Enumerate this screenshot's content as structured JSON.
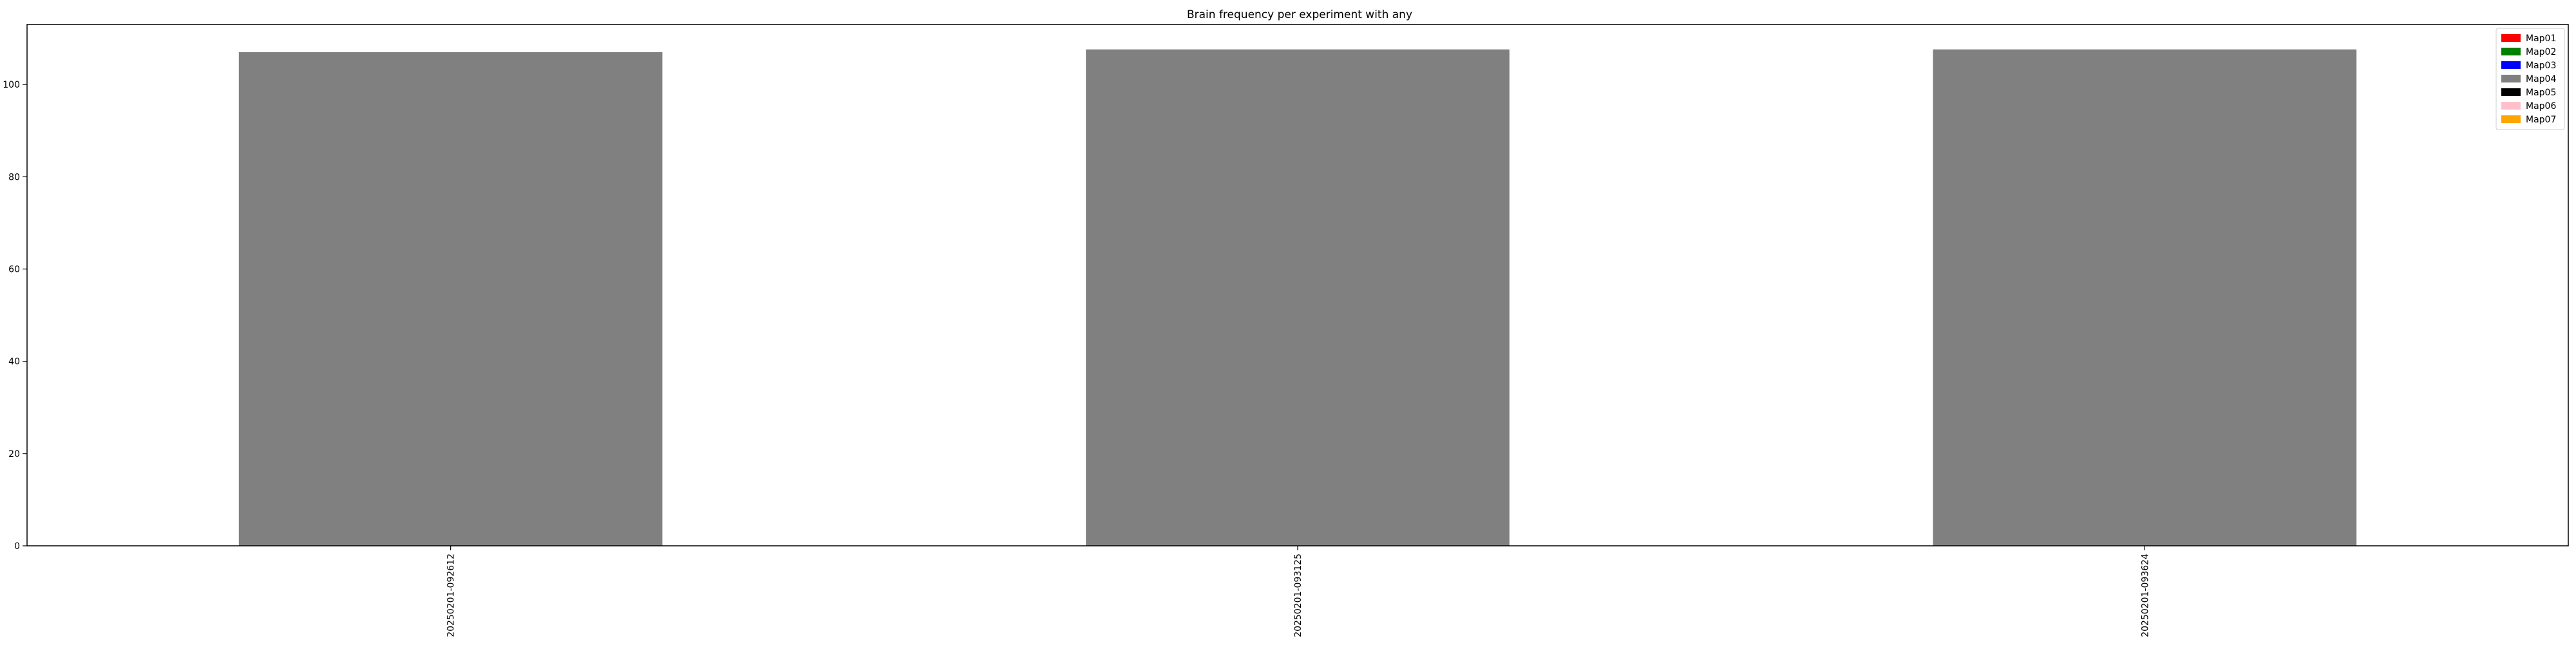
{
  "chart_data": {
    "type": "bar",
    "stacked": true,
    "title": "Brain frequency per experiment with any",
    "xlabel": "",
    "ylabel": "",
    "categories": [
      "20250201-092612",
      "20250201-093125",
      "20250201-093624"
    ],
    "ylim": [
      0,
      113
    ],
    "yticks": [
      0,
      20,
      40,
      60,
      80,
      100
    ],
    "grid": false,
    "legend_position": "top-right",
    "series": [
      {
        "name": "Map01",
        "color": "#ff0000",
        "values": [
          0,
          0,
          0
        ]
      },
      {
        "name": "Map02",
        "color": "#008000",
        "values": [
          0,
          0,
          0
        ]
      },
      {
        "name": "Map03",
        "color": "#0000ff",
        "values": [
          0,
          0,
          0
        ]
      },
      {
        "name": "Map04",
        "color": "#808080",
        "values": [
          107,
          107.6,
          107.6
        ]
      },
      {
        "name": "Map05",
        "color": "#000000",
        "values": [
          0,
          0,
          0
        ]
      },
      {
        "name": "Map06",
        "color": "#ffc0cb",
        "values": [
          0,
          0,
          0
        ]
      },
      {
        "name": "Map07",
        "color": "#ffa500",
        "values": [
          0,
          0,
          0
        ]
      }
    ]
  }
}
